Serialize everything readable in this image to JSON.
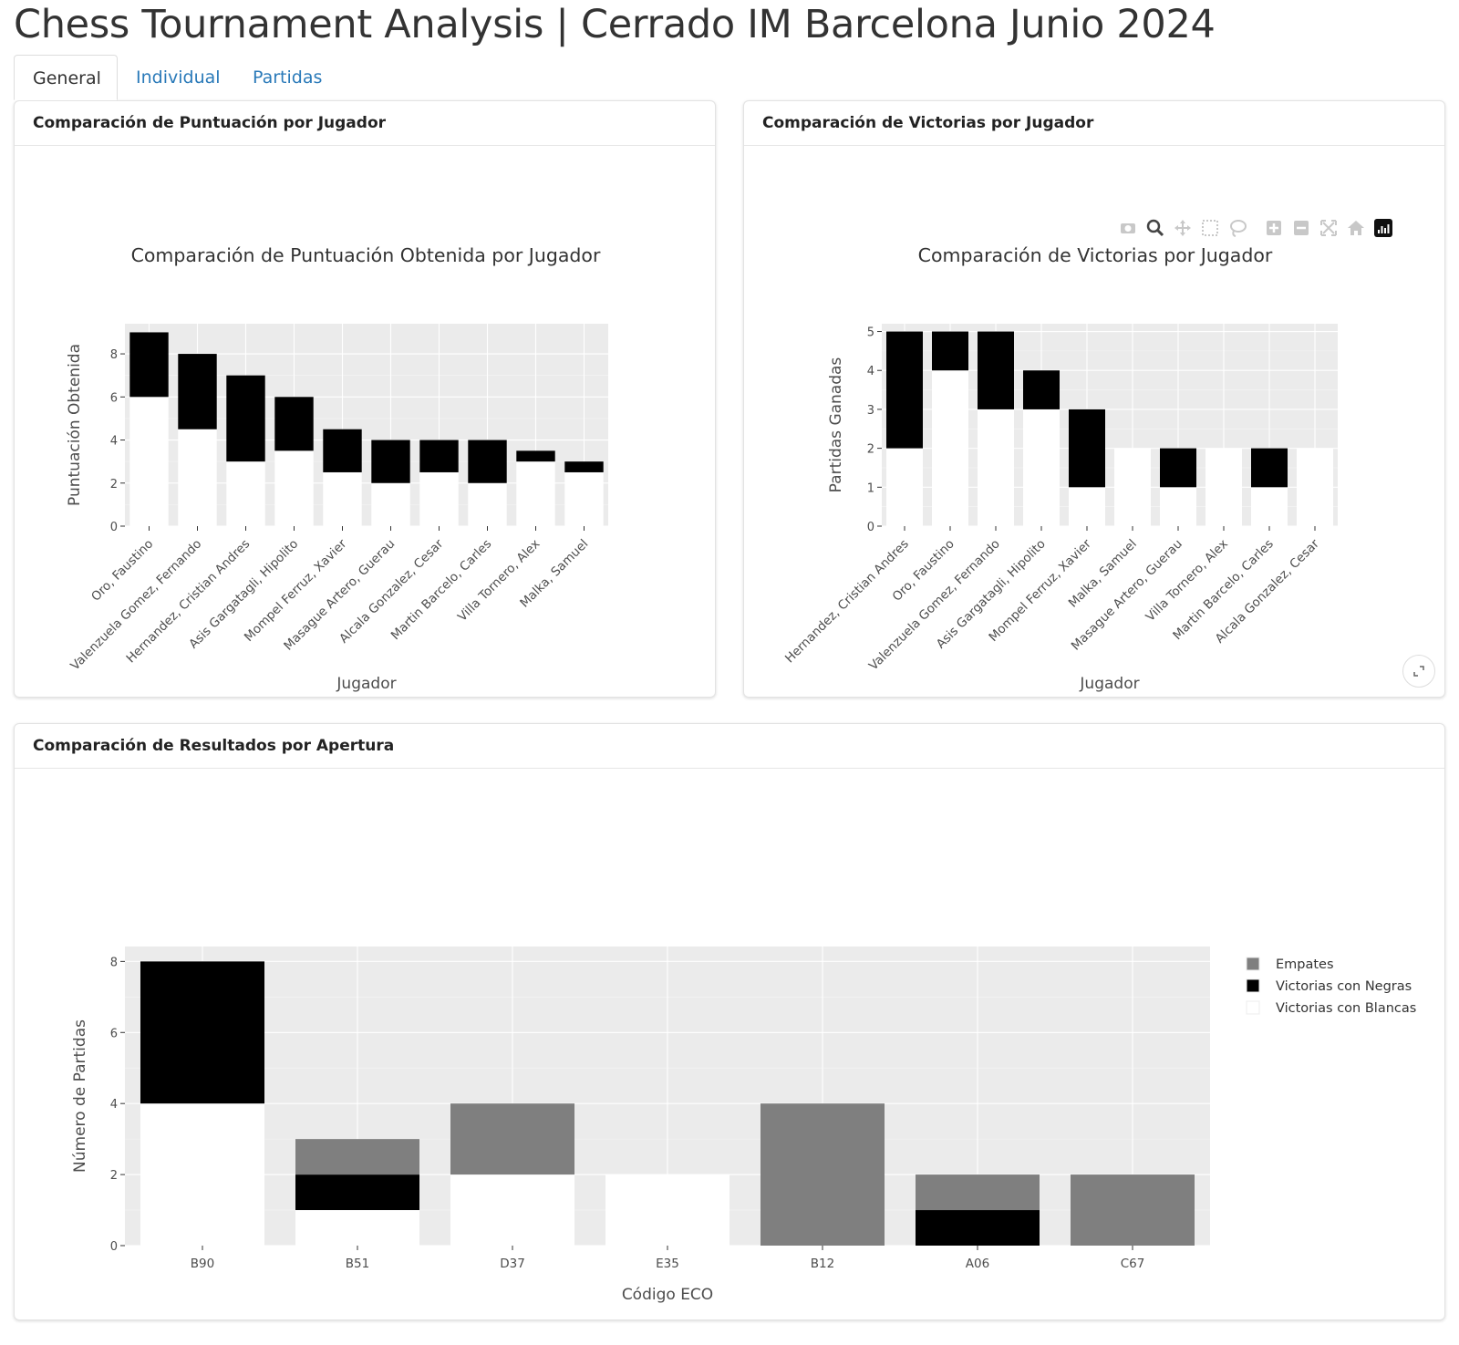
{
  "page": {
    "title": "Chess Tournament Analysis | Cerrado IM Barcelona Junio 2024"
  },
  "tabs": [
    {
      "label": "General",
      "active": true
    },
    {
      "label": "Individual",
      "active": false
    },
    {
      "label": "Partidas",
      "active": false
    }
  ],
  "cards": {
    "score": {
      "header": "Comparación de Puntuación por Jugador"
    },
    "wins": {
      "header": "Comparación de Victorias por Jugador"
    },
    "openings": {
      "header": "Comparación de Resultados por Apertura"
    }
  },
  "toolbar": {
    "icons": [
      "camera-icon",
      "zoom-icon",
      "pan-icon",
      "box-select-icon",
      "lasso-select-icon",
      "zoom-in-icon",
      "zoom-out-icon",
      "autoscale-icon",
      "reset-axes-icon",
      "plotly-logo-icon"
    ]
  },
  "colors": {
    "plot_bg": "#ebebeb",
    "white_segment": "#ffffff",
    "black_segment": "#000000",
    "draw_segment": "#7f7f7f"
  },
  "chart_data": [
    {
      "id": "score",
      "type": "bar",
      "stacked": true,
      "title": "Comparación de Puntuación Obtenida por Jugador",
      "xlabel": "Jugador",
      "ylabel": "Puntuación Obtenida",
      "ylim": [
        0,
        9.4
      ],
      "yticks": [
        0,
        2,
        4,
        6,
        8
      ],
      "grid": true,
      "categories": [
        "Oro, Faustino",
        "Valenzuela Gomez, Fernando",
        "Hernandez, Cristian Andres",
        "Asis Gargatagli, Hipolito",
        "Mompel Ferruz, Xavier",
        "Masague Artero, Guerau",
        "Alcala Gonzalez, Cesar",
        "Martin Barcelo, Carles",
        "Villa Tornero, Alex",
        "Malka, Samuel"
      ],
      "series": [
        {
          "color": "#ffffff",
          "values": [
            6,
            4.5,
            3,
            3.5,
            2.5,
            2,
            2.5,
            2,
            3,
            2.5
          ]
        },
        {
          "color": "#000000",
          "values": [
            3,
            3.5,
            4,
            2.5,
            2,
            2,
            1.5,
            2,
            0.5,
            0.5
          ]
        }
      ]
    },
    {
      "id": "wins",
      "type": "bar",
      "stacked": true,
      "title": "Comparación de Victorias por Jugador",
      "xlabel": "Jugador",
      "ylabel": "Partidas Ganadas",
      "ylim": [
        0,
        5.2
      ],
      "yticks": [
        0,
        1,
        2,
        3,
        4,
        5
      ],
      "grid": true,
      "categories": [
        "Hernandez, Cristian Andres",
        "Oro, Faustino",
        "Valenzuela Gomez, Fernando",
        "Asis Gargatagli, Hipolito",
        "Mompel Ferruz, Xavier",
        "Malka, Samuel",
        "Masague Artero, Guerau",
        "Villa Tornero, Alex",
        "Martin Barcelo, Carles",
        "Alcala Gonzalez, Cesar"
      ],
      "series": [
        {
          "color": "#ffffff",
          "values": [
            2,
            4,
            3,
            3,
            1,
            2,
            1,
            2,
            1,
            2
          ]
        },
        {
          "color": "#000000",
          "values": [
            3,
            1,
            2,
            1,
            2,
            0,
            1,
            0,
            1,
            0
          ]
        }
      ]
    },
    {
      "id": "openings",
      "type": "bar",
      "stacked": true,
      "title": "",
      "xlabel": "Código ECO",
      "ylabel": "Número de Partidas",
      "ylim": [
        0,
        8.42
      ],
      "yticks": [
        0,
        2,
        4,
        6,
        8
      ],
      "grid": true,
      "legend_position": "right",
      "categories": [
        "B90",
        "B51",
        "D37",
        "E35",
        "B12",
        "A06",
        "C67"
      ],
      "series": [
        {
          "name": "Victorias con Blancas",
          "color": "#ffffff",
          "values": [
            4,
            1,
            2,
            2,
            0,
            0,
            0
          ]
        },
        {
          "name": "Victorias con Negras",
          "color": "#000000",
          "values": [
            4,
            1,
            0,
            0,
            0,
            1,
            0
          ]
        },
        {
          "name": "Empates",
          "color": "#7f7f7f",
          "values": [
            0,
            1,
            2,
            0,
            4,
            1,
            2
          ]
        }
      ],
      "legend_order": [
        "Empates",
        "Victorias con Negras",
        "Victorias con Blancas"
      ]
    }
  ]
}
